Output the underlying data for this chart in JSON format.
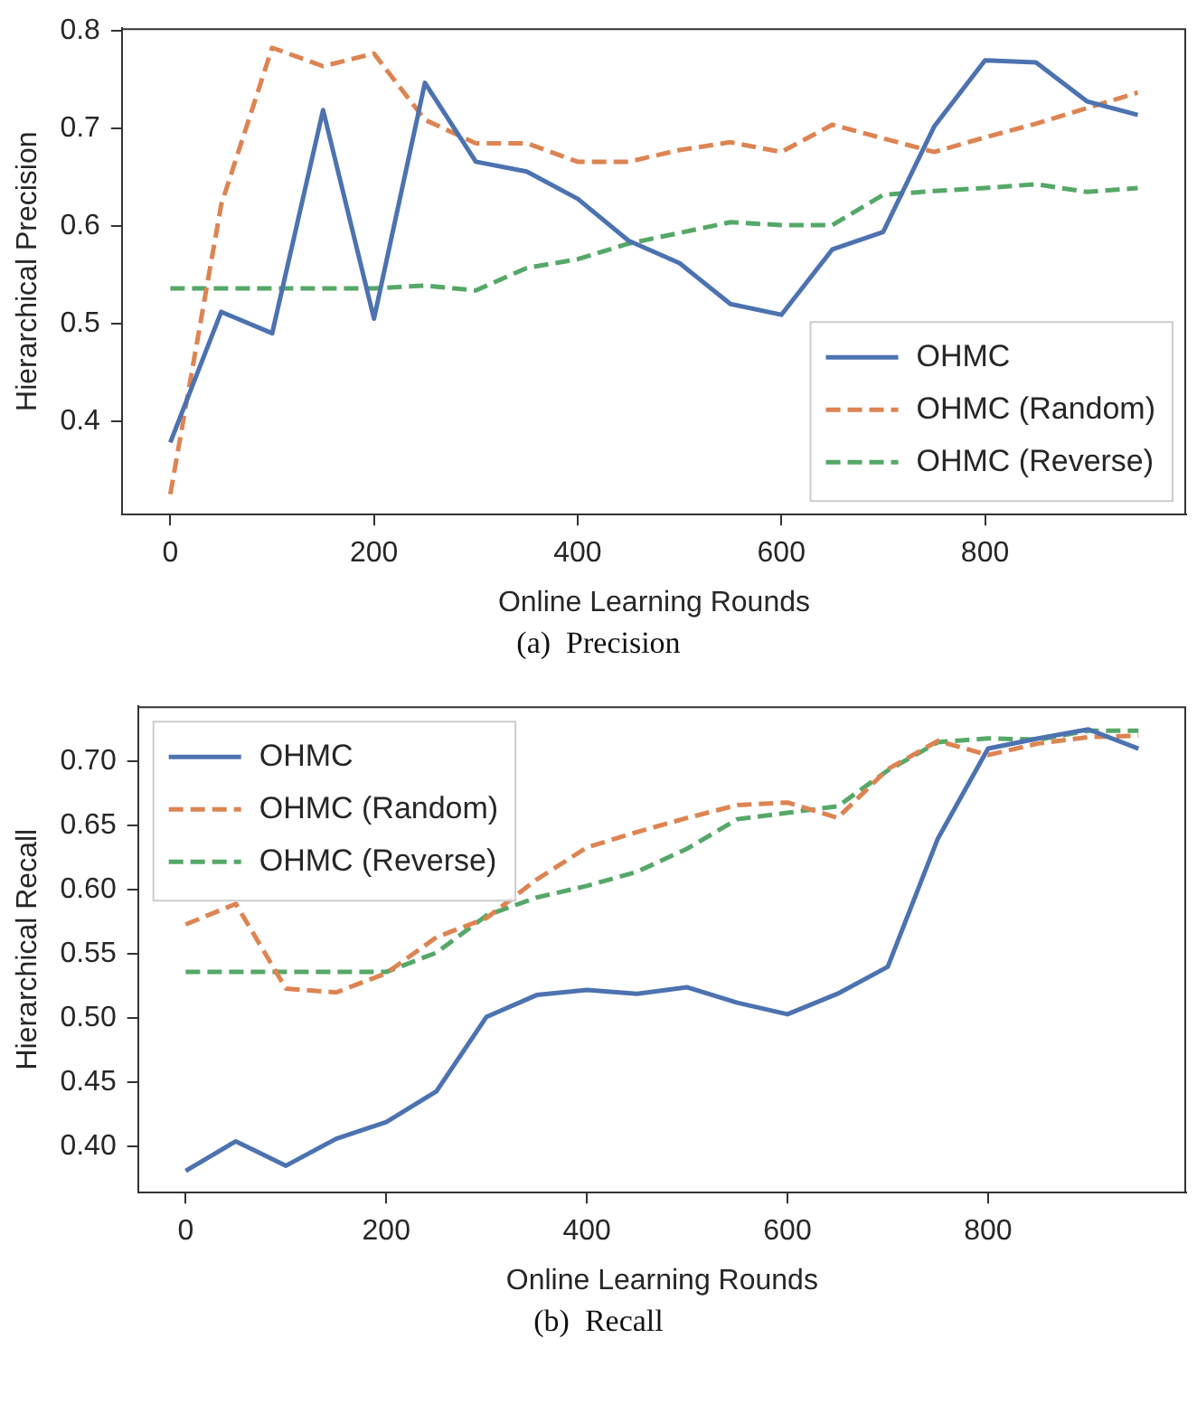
{
  "chart_data": [
    {
      "type": "line",
      "xlabel": "Online Learning Rounds",
      "ylabel": "Hierarchical Precision",
      "annotations": [
        "(a)  Precision"
      ],
      "x": [
        0,
        50,
        100,
        150,
        200,
        250,
        300,
        350,
        400,
        450,
        500,
        550,
        600,
        650,
        700,
        750,
        800,
        850,
        900,
        950
      ],
      "xlim": [
        -47.5,
        997.5
      ],
      "xticks": [
        0,
        200,
        400,
        600,
        800
      ],
      "ylim": [
        0.304,
        0.803
      ],
      "yticks": [
        0.4,
        0.5,
        0.6,
        0.7,
        0.8
      ],
      "grid": false,
      "legend": "bottom right",
      "marker": "none",
      "series": [
        {
          "name": "OHMC",
          "color": "#4c72b0",
          "line_style": "solid",
          "values": [
            0.378,
            0.512,
            0.49,
            0.719,
            0.505,
            0.747,
            0.666,
            0.656,
            0.628,
            0.585,
            0.562,
            0.52,
            0.509,
            0.576,
            0.594,
            0.702,
            0.77,
            0.768,
            0.728,
            0.714
          ]
        },
        {
          "name": "OHMC (Random)",
          "color": "#dd8452",
          "line_style": "dashed",
          "values": [
            0.325,
            0.622,
            0.783,
            0.764,
            0.777,
            0.709,
            0.685,
            0.685,
            0.666,
            0.666,
            0.678,
            0.686,
            0.676,
            0.704,
            0.69,
            0.676,
            0.691,
            0.705,
            0.721,
            0.737
          ]
        },
        {
          "name": "OHMC (Reverse)",
          "color": "#55a868",
          "line_style": "dashed",
          "values": [
            0.536,
            0.536,
            0.536,
            0.536,
            0.536,
            0.539,
            0.534,
            0.557,
            0.566,
            0.582,
            0.593,
            0.604,
            0.601,
            0.601,
            0.632,
            0.636,
            0.639,
            0.643,
            0.635,
            0.639
          ]
        }
      ]
    },
    {
      "type": "line",
      "xlabel": "Online Learning Rounds",
      "ylabel": "Hierarchical Recall",
      "annotations": [
        "(b)  Recall"
      ],
      "x": [
        0,
        50,
        100,
        150,
        200,
        250,
        300,
        350,
        400,
        450,
        500,
        550,
        600,
        650,
        700,
        750,
        800,
        850,
        900,
        950
      ],
      "xlim": [
        -47.5,
        997.5
      ],
      "xticks": [
        0,
        200,
        400,
        600,
        800
      ],
      "ylim": [
        0.364,
        0.743
      ],
      "yticks": [
        {
          "value": 0.4,
          "label": "0.40"
        },
        {
          "value": 0.45,
          "label": "0.45"
        },
        {
          "value": 0.5,
          "label": "0.50"
        },
        {
          "value": 0.55,
          "label": "0.55"
        },
        {
          "value": 0.6,
          "label": "0.60"
        },
        {
          "value": 0.65,
          "label": "0.65"
        },
        {
          "value": 0.7,
          "label": "0.70"
        }
      ],
      "grid": false,
      "legend": "top left",
      "marker": "none",
      "series": [
        {
          "name": "OHMC",
          "color": "#4c72b0",
          "line_style": "solid",
          "values": [
            0.381,
            0.404,
            0.385,
            0.406,
            0.419,
            0.443,
            0.501,
            0.518,
            0.522,
            0.519,
            0.524,
            0.512,
            0.503,
            0.519,
            0.54,
            0.64,
            0.71,
            0.718,
            0.725,
            0.71
          ]
        },
        {
          "name": "OHMC (Random)",
          "color": "#dd8452",
          "line_style": "dashed",
          "values": [
            0.573,
            0.589,
            0.523,
            0.52,
            0.535,
            0.563,
            0.578,
            0.608,
            0.633,
            0.645,
            0.656,
            0.666,
            0.668,
            0.656,
            0.694,
            0.716,
            0.705,
            0.714,
            0.719,
            0.72
          ]
        },
        {
          "name": "OHMC (Reverse)",
          "color": "#55a868",
          "line_style": "dashed",
          "values": [
            0.536,
            0.536,
            0.536,
            0.536,
            0.536,
            0.551,
            0.58,
            0.594,
            0.603,
            0.614,
            0.632,
            0.655,
            0.66,
            0.665,
            0.693,
            0.715,
            0.718,
            0.717,
            0.724,
            0.724
          ]
        }
      ]
    }
  ]
}
